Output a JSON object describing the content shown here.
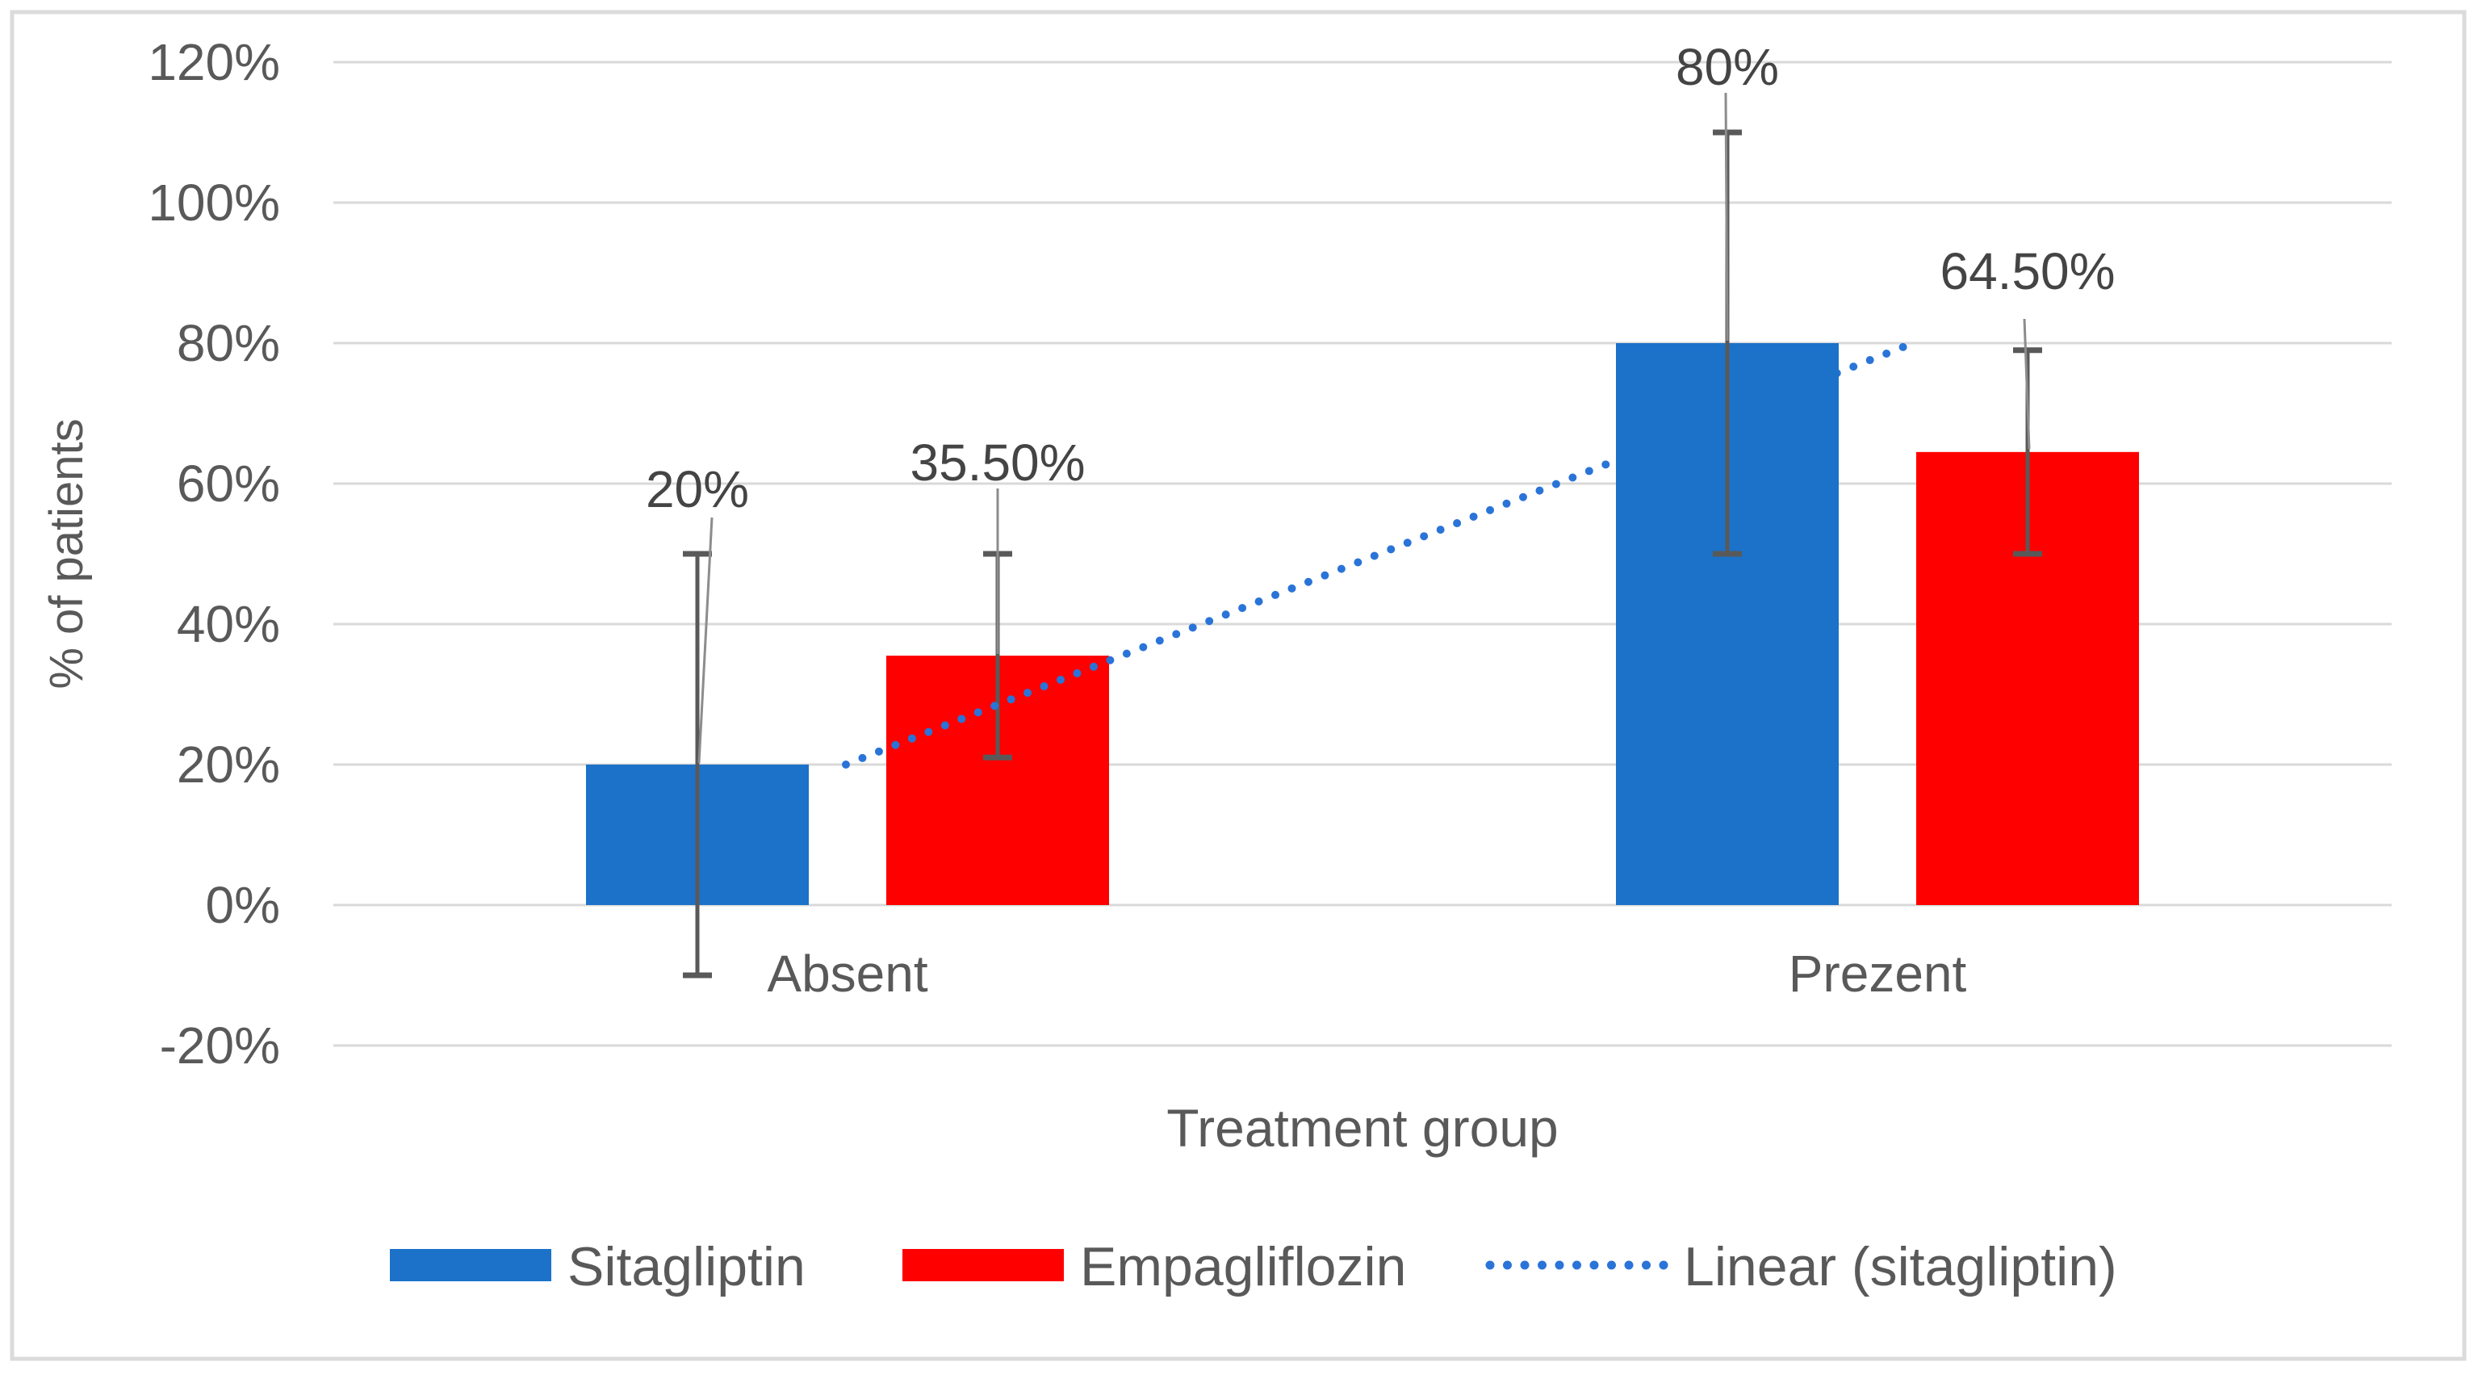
{
  "figure": {
    "y_tick_labels": [
      "120%",
      "100%",
      "80%",
      "60%",
      "40%",
      "20%",
      "0%",
      "-20%"
    ],
    "y_tick_values": [
      120,
      100,
      80,
      60,
      40,
      20,
      0,
      -20
    ]
  },
  "legend": {
    "items": [
      {
        "label": "Sitagliptin",
        "marker": "swatch",
        "color": "#1B72C8"
      },
      {
        "label": "Empagliflozin",
        "marker": "swatch",
        "color": "#FF0000"
      },
      {
        "label": "Linear (sitagliptin)",
        "marker": "dotted-line",
        "color": "#2A74D8"
      }
    ]
  },
  "chart_data": {
    "type": "bar",
    "categories": [
      "Absent",
      "Prezent"
    ],
    "series": [
      {
        "name": "Sitagliptin",
        "color": "#1B72C8",
        "values": [
          20,
          80
        ],
        "data_labels": [
          "20%",
          "80%"
        ],
        "error_bars": [
          {
            "low": -10,
            "high": 50
          },
          {
            "low": 50,
            "high": 110
          }
        ]
      },
      {
        "name": "Empagliflozin",
        "color": "#FF0000",
        "values": [
          35.5,
          64.5
        ],
        "data_labels": [
          "35.50%",
          "64.50%"
        ],
        "error_bars": [
          {
            "low": 21,
            "high": 50
          },
          {
            "low": 50,
            "high": 79
          }
        ]
      }
    ],
    "trendline": {
      "name": "Linear (sitagliptin)",
      "series": "Sitagliptin",
      "start_value": 20,
      "end_value": 80,
      "style": "dotted",
      "color": "#2A74D8"
    },
    "xlabel": "Treatment group",
    "ylabel": "% of patients",
    "ylim": [
      -20,
      120
    ],
    "ytick_step": 20,
    "grid": true,
    "legend_position": "bottom",
    "gridline_color": "#D9D9D9",
    "error_bar_color": "#595959"
  }
}
